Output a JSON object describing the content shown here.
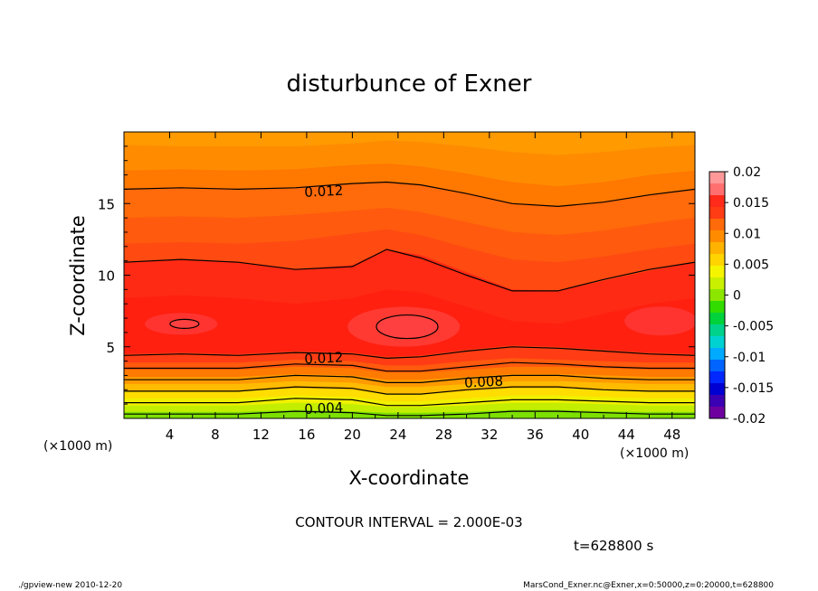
{
  "chart_data": {
    "type": "heatmap",
    "title": "disturbunce of Exner",
    "xlabel": "X-coordinate",
    "ylabel": "Z-coordinate",
    "x_unit": "(×1000 m)",
    "y_unit": "(×1000 m)",
    "xlim": [
      0,
      50
    ],
    "ylim": [
      0,
      20
    ],
    "x_ticks": [
      "4",
      "8",
      "12",
      "16",
      "20",
      "24",
      "28",
      "32",
      "36",
      "40",
      "44",
      "48"
    ],
    "y_ticks": [
      "5",
      "10",
      "15"
    ],
    "contour_labels": [
      "0.012",
      "0.012",
      "0.008",
      "0.004"
    ],
    "colorbar": {
      "ticks": [
        "0.02",
        "0.015",
        "0.01",
        "0.005",
        "0",
        "-0.005",
        "-0.01",
        "-0.015",
        "-0.02"
      ],
      "colors": [
        "#ff9999",
        "#ff6f6f",
        "#ff2a1a",
        "#ff3c14",
        "#ff6a0a",
        "#ff8c00",
        "#ffb300",
        "#ffd400",
        "#f5f500",
        "#c8f000",
        "#8ce600",
        "#32dc00",
        "#00d23c",
        "#00d28c",
        "#00d2d2",
        "#00aaff",
        "#0064ff",
        "#0028ff",
        "#0000d2",
        "#3c00b4",
        "#6e00a0"
      ]
    }
  },
  "contour_interval": "CONTOUR INTERVAL = 2.000E-03",
  "time_label": "t=628800 s",
  "footer_left": "./gpview-new  2010-12-20",
  "footer_right": "MarsCond_Exner.nc@Exner,x=0:50000,z=0:20000,t=628800"
}
